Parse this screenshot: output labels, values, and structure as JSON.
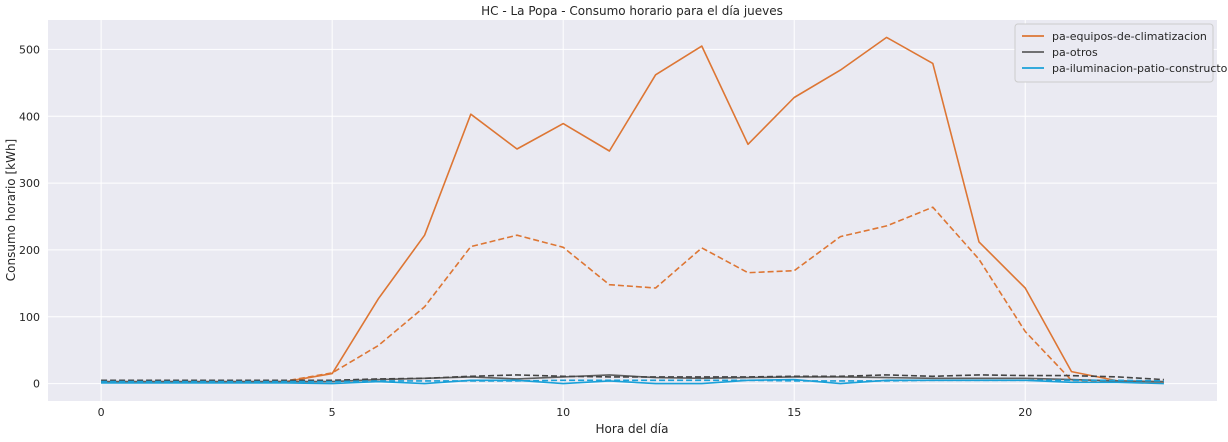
{
  "chart_data": {
    "type": "line",
    "title": "HC - La Popa - Consumo horario para el día jueves",
    "xlabel": "Hora del día",
    "ylabel": "Consumo horario [kWh]",
    "xlim": [
      -1.15,
      24.15
    ],
    "ylim": [
      -26,
      544
    ],
    "xticks": [
      0,
      5,
      10,
      15,
      20
    ],
    "yticks": [
      0,
      100,
      200,
      300,
      400,
      500
    ],
    "grid": true,
    "legend_position": "top-right",
    "x": [
      0,
      1,
      2,
      3,
      4,
      5,
      6,
      7,
      8,
      9,
      10,
      11,
      12,
      13,
      14,
      15,
      16,
      17,
      18,
      19,
      20,
      21,
      22,
      23
    ],
    "series": [
      {
        "name": "pa-equipos-de-climatizacion",
        "color": "#dd7634",
        "style": "solid",
        "values": [
          2,
          2,
          2,
          2,
          3,
          15,
          127,
          222,
          403,
          351,
          389,
          348,
          462,
          505,
          358,
          428,
          469,
          518,
          479,
          212,
          143,
          18,
          4,
          2
        ]
      },
      {
        "name": "",
        "color": "#dd7634",
        "style": "dashed",
        "values": [
          2,
          2,
          2,
          2,
          4,
          16,
          57,
          115,
          205,
          222,
          204,
          148,
          143,
          203,
          166,
          169,
          220,
          236,
          264,
          186,
          78,
          5,
          3,
          2
        ]
      },
      {
        "name": "pa-otros",
        "color": "#5f5f5f",
        "style": "solid",
        "values": [
          3,
          3,
          3,
          3,
          3,
          3,
          6,
          8,
          10,
          7,
          10,
          13,
          9,
          8,
          9,
          10,
          10,
          9,
          8,
          8,
          8,
          6,
          4,
          3
        ]
      },
      {
        "name": "",
        "color": "#444444",
        "style": "dashed",
        "values": [
          5,
          5,
          5,
          5,
          5,
          5,
          7,
          8,
          11,
          13,
          11,
          10,
          10,
          10,
          10,
          11,
          11,
          13,
          11,
          13,
          12,
          12,
          10,
          6
        ]
      },
      {
        "name": "pa-iluminacion-patio-constructor",
        "color": "#1aa0d8",
        "style": "solid",
        "values": [
          1,
          1,
          1,
          1,
          1,
          0,
          3,
          0,
          5,
          5,
          0,
          4,
          0,
          0,
          5,
          6,
          0,
          5,
          5,
          5,
          5,
          2,
          2,
          0
        ]
      },
      {
        "name": "",
        "color": "#1aa0d8",
        "style": "dashed",
        "values": [
          3,
          3,
          3,
          3,
          3,
          3,
          4,
          4,
          4,
          4,
          5,
          5,
          5,
          5,
          5,
          4,
          4,
          4,
          5,
          5,
          5,
          5,
          5,
          4
        ]
      }
    ]
  }
}
